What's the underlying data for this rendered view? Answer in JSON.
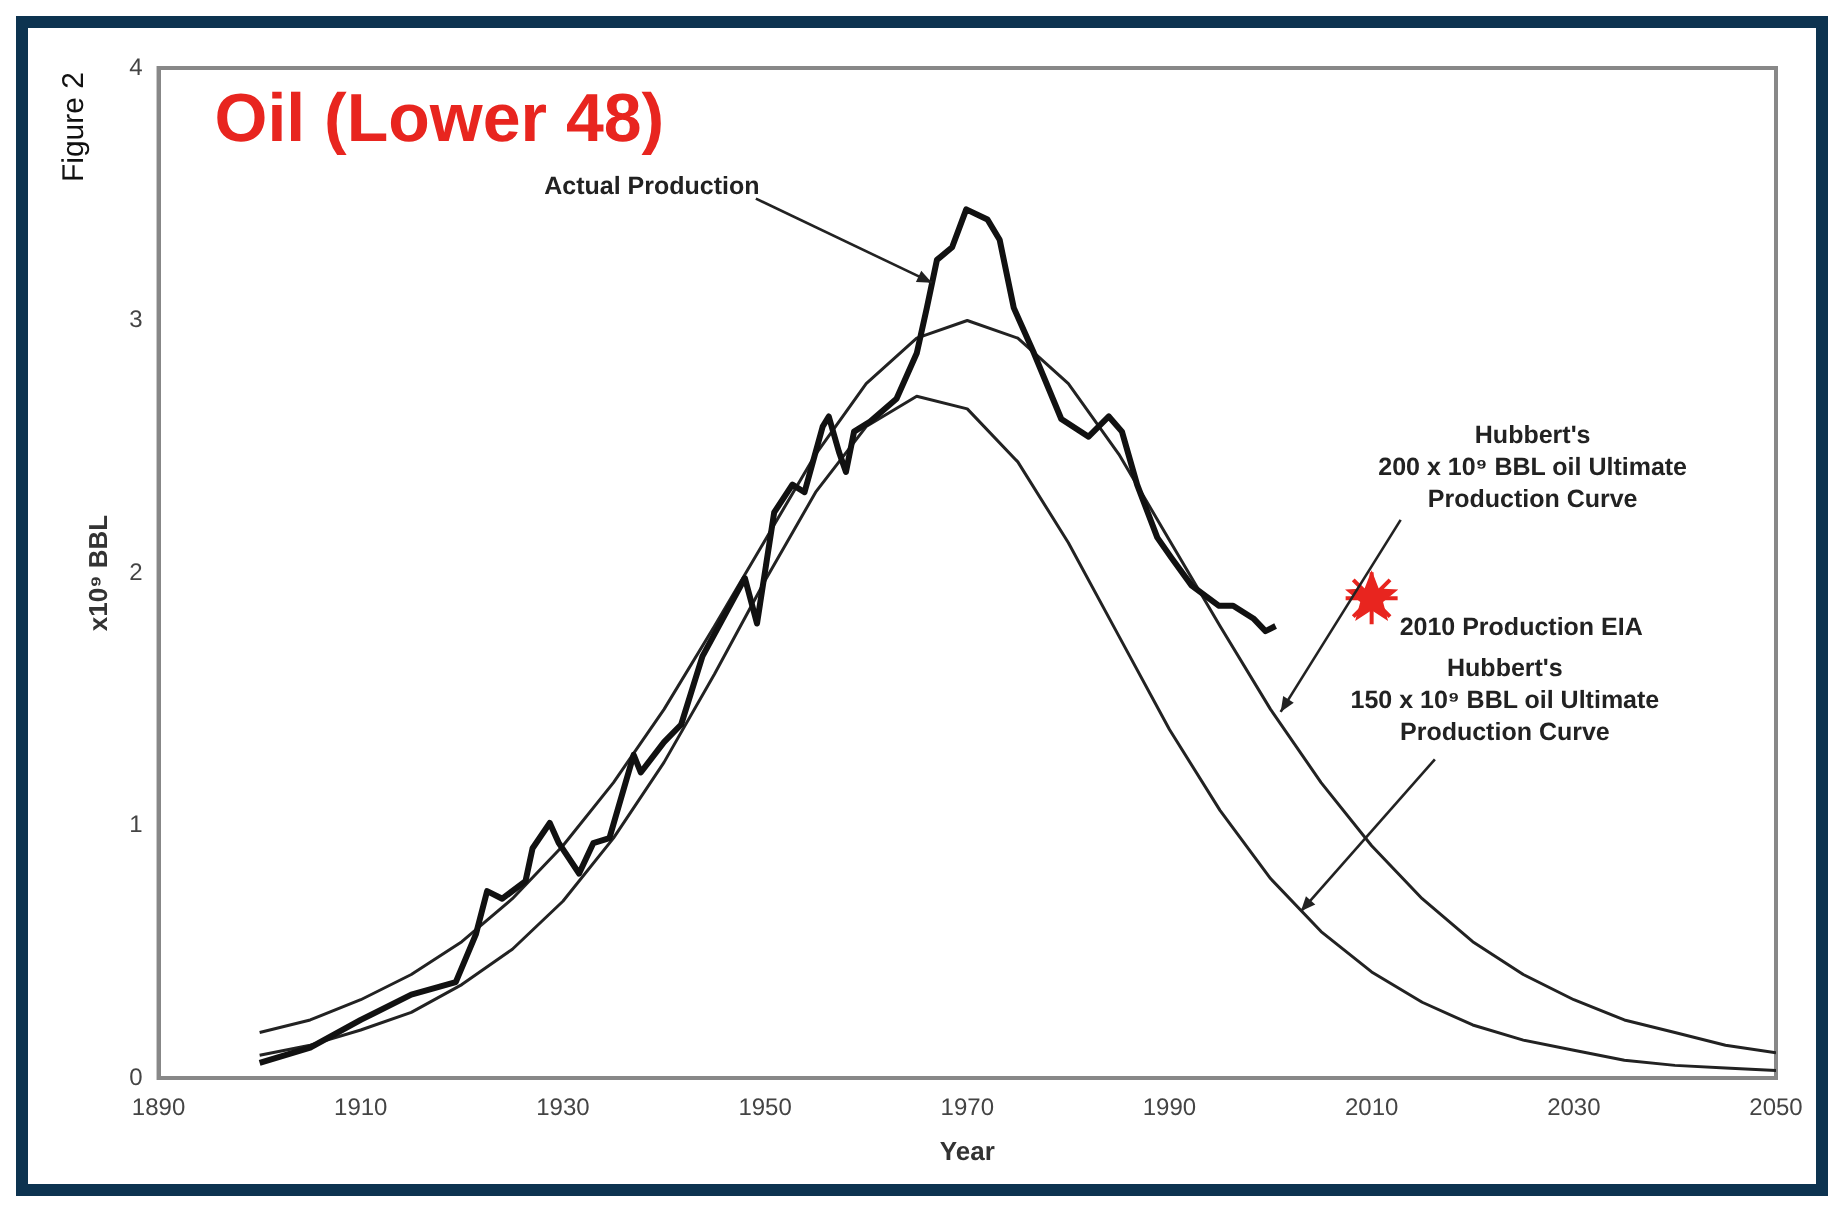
{
  "chart_data": {
    "type": "line",
    "title": "Oil (Lower 48)",
    "xlabel": "Year",
    "ylabel": "x10⁹ BBL",
    "x": [
      1900,
      1905,
      1910,
      1915,
      1920,
      1925,
      1930,
      1935,
      1940,
      1945,
      1950,
      1955,
      1960,
      1965,
      1970,
      1975,
      1980,
      1985,
      1990,
      1995,
      2000,
      2005,
      2010,
      2015,
      2020,
      2025,
      2030,
      2035,
      2040,
      2045,
      2050
    ],
    "series": [
      {
        "color": "#111111",
        "x": [
          1900,
          1905,
          1910,
          1915,
          1919.4,
          1921.4,
          1922.5,
          1924,
          1926.3,
          1927,
          1928.7,
          1929.6,
          1931.6,
          1933,
          1934.6,
          1937,
          1937.7,
          1940,
          1941.7,
          1943.8,
          1948,
          1949.2,
          1950.9,
          1952.7,
          1953.9,
          1955.7,
          1956.3,
          1957.3,
          1958,
          1958.8,
          1960.4,
          1963,
          1965,
          1966,
          1967,
          1968.5,
          1969.9,
          1972,
          1973.2,
          1974.6,
          1976.6,
          1979.3,
          1982,
          1984,
          1985.3,
          1986.8,
          1988.8,
          1990.2,
          1992.2,
          1994.9,
          1996.3,
          1998.3,
          1999.5,
          2000.5
        ],
        "values": [
          0.06,
          0.12,
          0.23,
          0.33,
          0.38,
          0.57,
          0.74,
          0.71,
          0.78,
          0.91,
          1.01,
          0.93,
          0.81,
          0.93,
          0.95,
          1.28,
          1.21,
          1.33,
          1.4,
          1.67,
          1.98,
          1.8,
          2.24,
          2.35,
          2.32,
          2.58,
          2.62,
          2.48,
          2.4,
          2.56,
          2.6,
          2.69,
          2.87,
          3.05,
          3.24,
          3.29,
          3.44,
          3.4,
          3.32,
          3.05,
          2.87,
          2.61,
          2.54,
          2.62,
          2.56,
          2.35,
          2.14,
          2.06,
          1.95,
          1.87,
          1.87,
          1.82,
          1.77,
          1.79
        ]
      },
      {
        "color": "#222222",
        "values": [
          0.18,
          0.23,
          0.31,
          0.41,
          0.54,
          0.71,
          0.92,
          1.17,
          1.46,
          1.79,
          2.13,
          2.47,
          2.75,
          2.93,
          3.0,
          2.93,
          2.75,
          2.47,
          2.13,
          1.79,
          1.46,
          1.17,
          0.92,
          0.71,
          0.54,
          0.41,
          0.31,
          0.23,
          0.18,
          0.13,
          0.1
        ]
      },
      {
        "color": "#222222",
        "values": [
          0.09,
          0.13,
          0.19,
          0.26,
          0.37,
          0.51,
          0.7,
          0.95,
          1.25,
          1.6,
          1.97,
          2.32,
          2.58,
          2.7,
          2.65,
          2.44,
          2.12,
          1.75,
          1.38,
          1.06,
          0.79,
          0.58,
          0.42,
          0.3,
          0.21,
          0.15,
          0.11,
          0.07,
          0.05,
          0.04,
          0.03
        ]
      },
      {
        "type": "scatter",
        "marker": "star",
        "color": "#e8251f",
        "x": [
          2010
        ],
        "values": [
          1.9
        ]
      }
    ],
    "xlim": [
      1890,
      2050
    ],
    "xticks": [
      1890,
      1910,
      1930,
      1950,
      1970,
      1990,
      2010,
      2030,
      2050
    ],
    "ylim": [
      0,
      4
    ],
    "yticks": [
      0,
      1,
      2,
      3,
      4
    ],
    "grid": false,
    "legend": false,
    "marker": "none",
    "line_style": "solid",
    "annotations": [
      "Figure 2",
      {
        "text": "Actual Production",
        "x": 1966.5,
        "y": 3.15
      },
      {
        "text": "Hubbert's 200 x 10⁹ BBL oil Ultimate Production Curve",
        "x": 2001,
        "y": 1.45
      },
      {
        "text": "2010 Production EIA",
        "x": 2010,
        "y": 1.9
      },
      {
        "text": "Hubbert's 150 x 10⁹ BBL oil Ultimate Production Curve",
        "x": 2003,
        "y": 0.66
      }
    ]
  }
}
